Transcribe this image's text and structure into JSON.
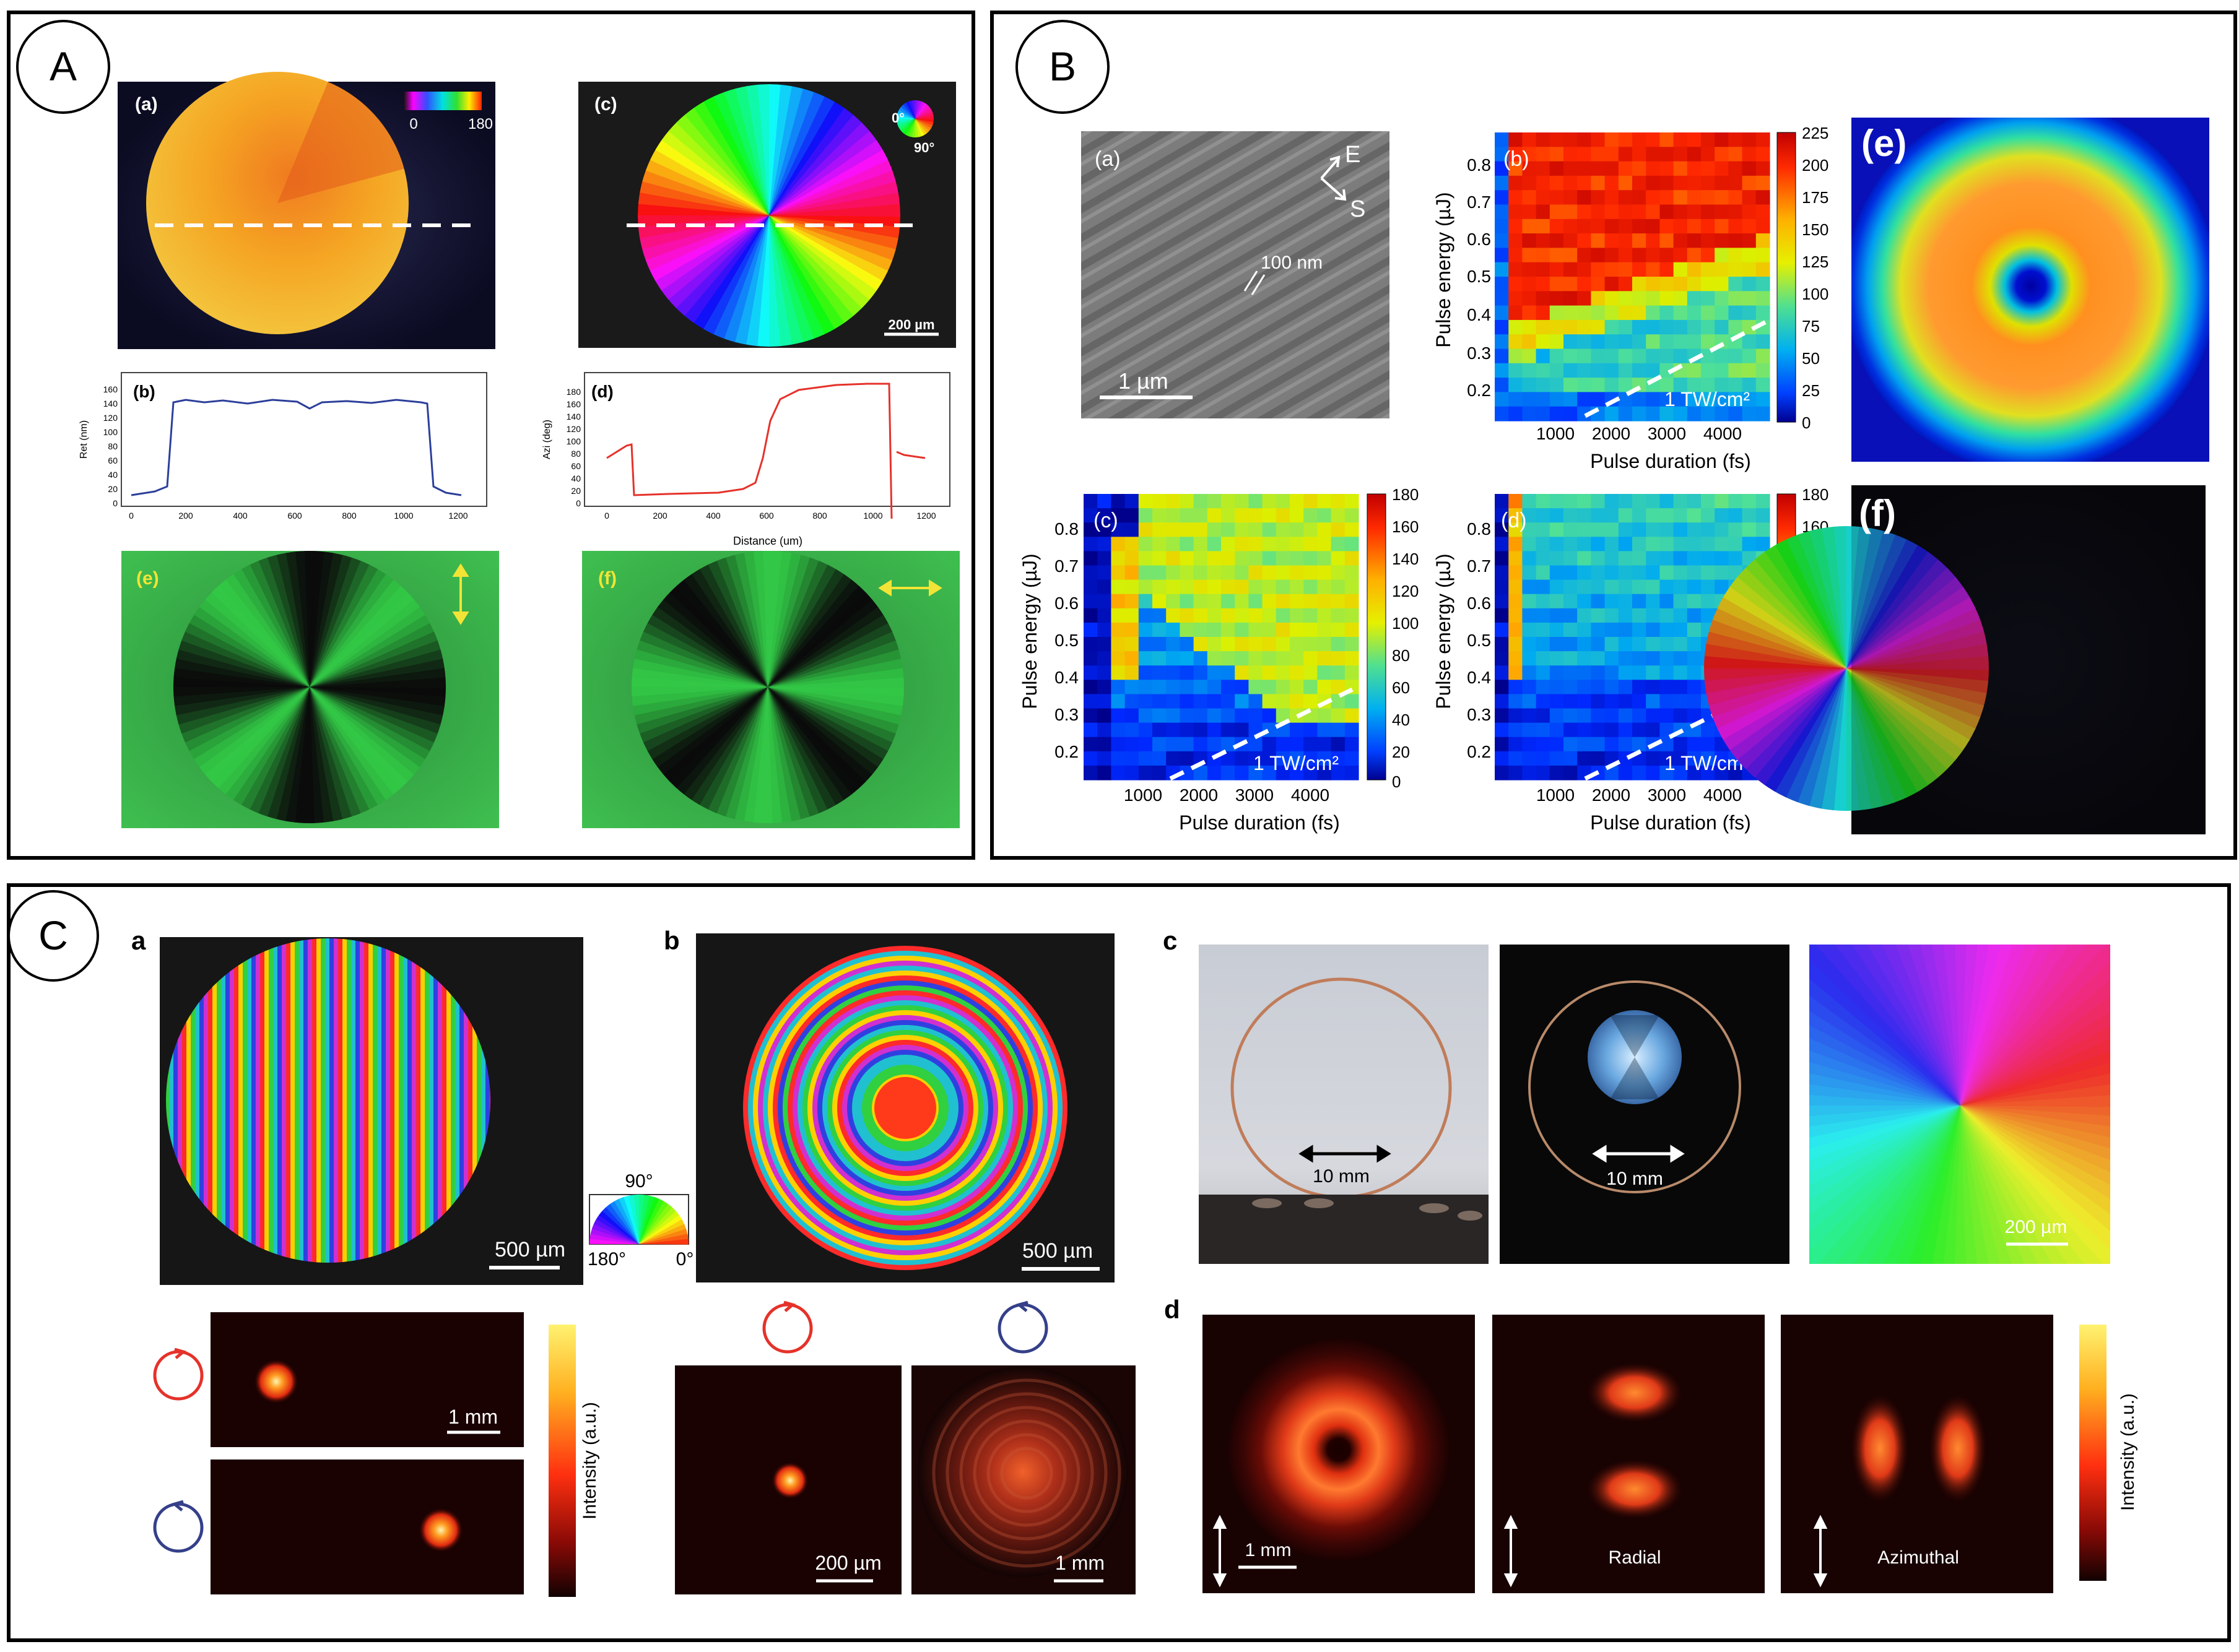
{
  "panels": {
    "A": {
      "letter": "A",
      "labels": {
        "a": "(a)",
        "b": "(b)",
        "c": "(c)",
        "d": "(d)",
        "e": "(e)",
        "f": "(f)"
      },
      "colorbar": {
        "min": "0",
        "max": "180"
      },
      "wheel": {
        "zero": "0°",
        "ninety": "90°"
      },
      "scalebar": "200 µm",
      "plot_b": {
        "ylabel": "Ret (nm)",
        "yticks": [
          "0",
          "20",
          "40",
          "60",
          "80",
          "100",
          "120",
          "140",
          "160"
        ],
        "xticks": [
          "0",
          "200",
          "400",
          "600",
          "800",
          "1000",
          "1200"
        ]
      },
      "plot_d": {
        "ylabel": "Azi (deg)",
        "yticks": [
          "0",
          "20",
          "40",
          "60",
          "80",
          "100",
          "120",
          "140",
          "160",
          "180"
        ],
        "xticks": [
          "0",
          "200",
          "400",
          "600",
          "800",
          "1000",
          "1200"
        ],
        "xlabel": "Distance (um)"
      }
    },
    "B": {
      "letter": "B",
      "labels": {
        "a": "(a)",
        "b": "(b)",
        "c": "(c)",
        "d": "(d)",
        "e": "(e)",
        "f": "(f)"
      },
      "sem": {
        "e": "E",
        "s": "S",
        "size": "100 nm",
        "scalebar": "1 µm"
      },
      "heatmaps": {
        "xlabel": "Pulse duration (fs)",
        "ylabel": "Pulse energy (µJ)",
        "xticks": [
          "1000",
          "2000",
          "3000",
          "4000"
        ],
        "yticks": [
          "0.2",
          "0.3",
          "0.4",
          "0.5",
          "0.6",
          "0.7",
          "0.8"
        ],
        "threshold": "1 TW/cm²",
        "cbar_b": [
          "225",
          "200",
          "175",
          "150",
          "125",
          "100",
          "75",
          "50",
          "25",
          "0"
        ],
        "cbar_cd": [
          "180",
          "160",
          "140",
          "120",
          "100",
          "80",
          "60",
          "40",
          "20",
          "0"
        ]
      }
    },
    "C": {
      "letter": "C",
      "labels": {
        "a": "a",
        "b": "b",
        "c": "c",
        "d": "d"
      },
      "scale_500": "500 µm",
      "scale_1mm": "1 mm",
      "scale_200": "200 µm",
      "scale_10mm": "10 mm",
      "wheel": {
        "top": "90°",
        "left": "180°",
        "right": "0°"
      },
      "intensity": "Intensity (a.u.)",
      "radial": "Radial",
      "azimuthal": "Azimuthal"
    }
  },
  "colors": {
    "border": "#000000",
    "green": "#33c24a",
    "beam": "#ff4a1e",
    "red_circle": "#e5322a",
    "blue_circle": "#35408a"
  }
}
